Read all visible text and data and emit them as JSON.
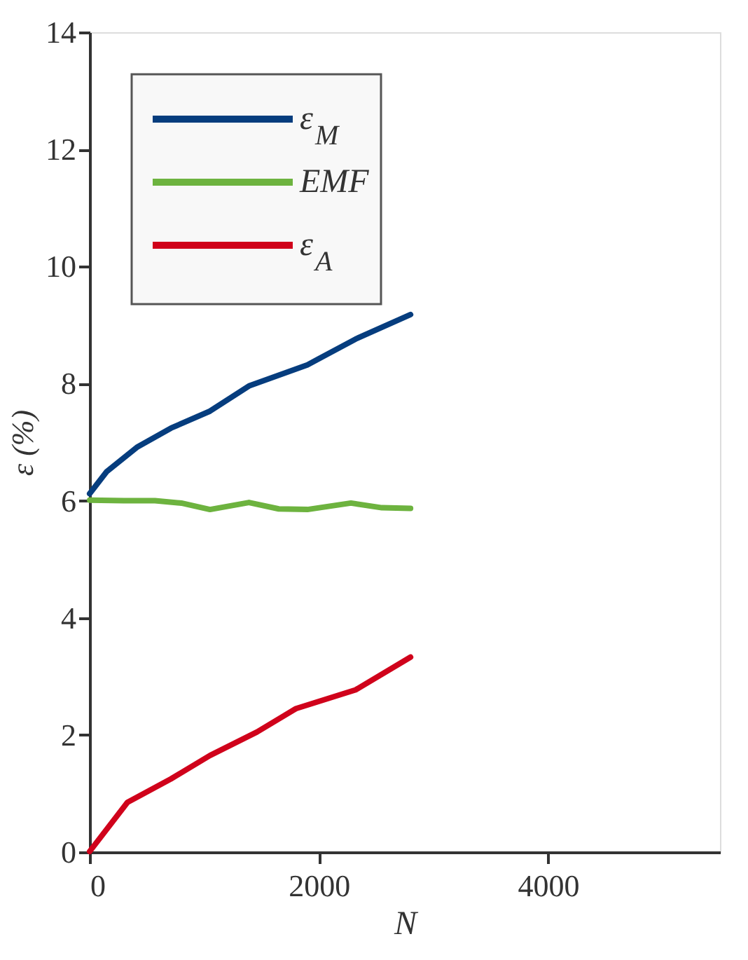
{
  "chart_data": {
    "type": "line",
    "xlabel": "N",
    "ylabel": "ε (%)",
    "xlim": [
      0,
      5500
    ],
    "xticks": [
      0,
      2000,
      4000
    ],
    "ylim": [
      0,
      14
    ],
    "yticks": [
      0,
      2,
      4,
      6,
      8,
      10,
      12,
      14
    ],
    "grid": false,
    "legend": "top left",
    "marker": "none",
    "line_style": "solid",
    "series": [
      {
        "name": "ε$_{M}$",
        "color": "#063d7e",
        "x": [
          0,
          150,
          418,
          710,
          1050,
          1390,
          1900,
          2320,
          2800
        ],
        "values": [
          6.12,
          6.5,
          6.92,
          7.24,
          7.53,
          7.96,
          8.32,
          8.76,
          9.18
        ]
      },
      {
        "name": "EMF",
        "color": "#6db33f",
        "x": [
          0,
          300,
          570,
          800,
          1050,
          1390,
          1650,
          1900,
          2280,
          2550,
          2800
        ],
        "values": [
          6.01,
          6.0,
          6.0,
          5.96,
          5.85,
          5.97,
          5.86,
          5.85,
          5.96,
          5.88,
          5.87
        ]
      },
      {
        "name": "ε$_{A}$",
        "color": "#d0021b",
        "x": [
          0,
          330,
          710,
          1050,
          1460,
          1800,
          2320,
          2800
        ],
        "values": [
          0.01,
          0.85,
          1.25,
          1.65,
          2.05,
          2.45,
          2.77,
          3.33
        ]
      }
    ]
  }
}
